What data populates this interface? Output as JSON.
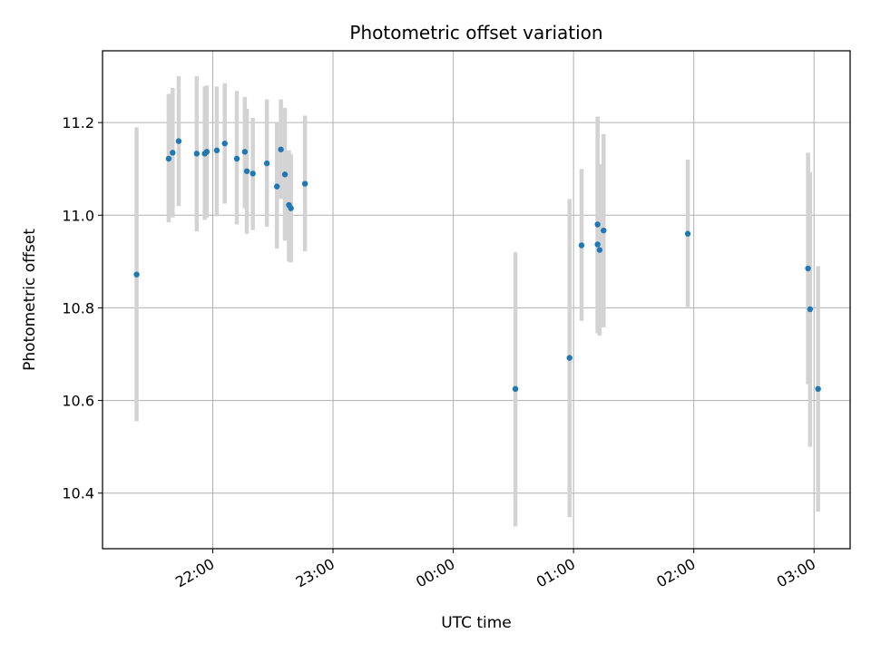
{
  "chart_data": {
    "type": "scatter",
    "title": "Photometric offset variation",
    "xlabel": "UTC time",
    "ylabel": "Photometric offset",
    "x_unit": "UTC time of night (continues past midnight)",
    "xlim": [
      "21:05",
      "03:18"
    ],
    "ylim": [
      10.28,
      11.355
    ],
    "x_ticks": [
      "22:00",
      "23:00",
      "00:00",
      "01:00",
      "02:00",
      "03:00"
    ],
    "y_ticks": [
      10.4,
      10.6,
      10.8,
      11.0,
      11.2
    ],
    "grid": true,
    "errorbars": true,
    "colors": {
      "points": "#1f77b4",
      "errorbars": "#d3d3d3",
      "grid": "#b0b0b0"
    },
    "points": [
      {
        "t": "21:22",
        "y": 10.872,
        "lo": 10.555,
        "hi": 11.19
      },
      {
        "t": "21:38",
        "y": 11.122,
        "lo": 10.985,
        "hi": 11.262
      },
      {
        "t": "21:40",
        "y": 11.135,
        "lo": 10.995,
        "hi": 11.275
      },
      {
        "t": "21:43",
        "y": 11.16,
        "lo": 11.02,
        "hi": 11.3
      },
      {
        "t": "21:52",
        "y": 11.133,
        "lo": 10.965,
        "hi": 11.3
      },
      {
        "t": "21:56",
        "y": 11.133,
        "lo": 10.99,
        "hi": 11.278
      },
      {
        "t": "21:57",
        "y": 11.137,
        "lo": 10.995,
        "hi": 11.28
      },
      {
        "t": "22:02",
        "y": 11.14,
        "lo": 10.998,
        "hi": 11.278
      },
      {
        "t": "22:06",
        "y": 11.155,
        "lo": 11.025,
        "hi": 11.285
      },
      {
        "t": "22:12",
        "y": 11.122,
        "lo": 10.98,
        "hi": 11.268
      },
      {
        "t": "22:16",
        "y": 11.137,
        "lo": 11.015,
        "hi": 11.255
      },
      {
        "t": "22:17",
        "y": 11.095,
        "lo": 10.96,
        "hi": 11.23
      },
      {
        "t": "22:20",
        "y": 11.09,
        "lo": 10.968,
        "hi": 11.21
      },
      {
        "t": "22:27",
        "y": 11.112,
        "lo": 10.975,
        "hi": 11.25
      },
      {
        "t": "22:32",
        "y": 11.062,
        "lo": 10.928,
        "hi": 11.2
      },
      {
        "t": "22:34",
        "y": 11.142,
        "lo": 11.035,
        "hi": 11.25
      },
      {
        "t": "22:36",
        "y": 11.088,
        "lo": 10.945,
        "hi": 11.232
      },
      {
        "t": "22:38",
        "y": 11.022,
        "lo": 10.9,
        "hi": 11.14
      },
      {
        "t": "22:39",
        "y": 11.015,
        "lo": 10.898,
        "hi": 11.132
      },
      {
        "t": "22:46",
        "y": 11.068,
        "lo": 10.922,
        "hi": 11.215
      },
      {
        "t": "00:31",
        "y": 10.625,
        "lo": 10.328,
        "hi": 10.92
      },
      {
        "t": "00:58",
        "y": 10.692,
        "lo": 10.348,
        "hi": 11.035
      },
      {
        "t": "01:04",
        "y": 10.935,
        "lo": 10.772,
        "hi": 11.1
      },
      {
        "t": "01:12",
        "y": 10.937,
        "lo": 10.758,
        "hi": 11.118
      },
      {
        "t": "01:12",
        "y": 10.98,
        "lo": 10.745,
        "hi": 11.213
      },
      {
        "t": "01:13",
        "y": 10.925,
        "lo": 10.74,
        "hi": 11.11
      },
      {
        "t": "01:15",
        "y": 10.967,
        "lo": 10.758,
        "hi": 11.175
      },
      {
        "t": "01:57",
        "y": 10.96,
        "lo": 10.802,
        "hi": 11.12
      },
      {
        "t": "02:57",
        "y": 10.885,
        "lo": 10.635,
        "hi": 11.135
      },
      {
        "t": "02:58",
        "y": 10.797,
        "lo": 10.5,
        "hi": 11.093
      },
      {
        "t": "03:02",
        "y": 10.625,
        "lo": 10.36,
        "hi": 10.89
      }
    ]
  }
}
